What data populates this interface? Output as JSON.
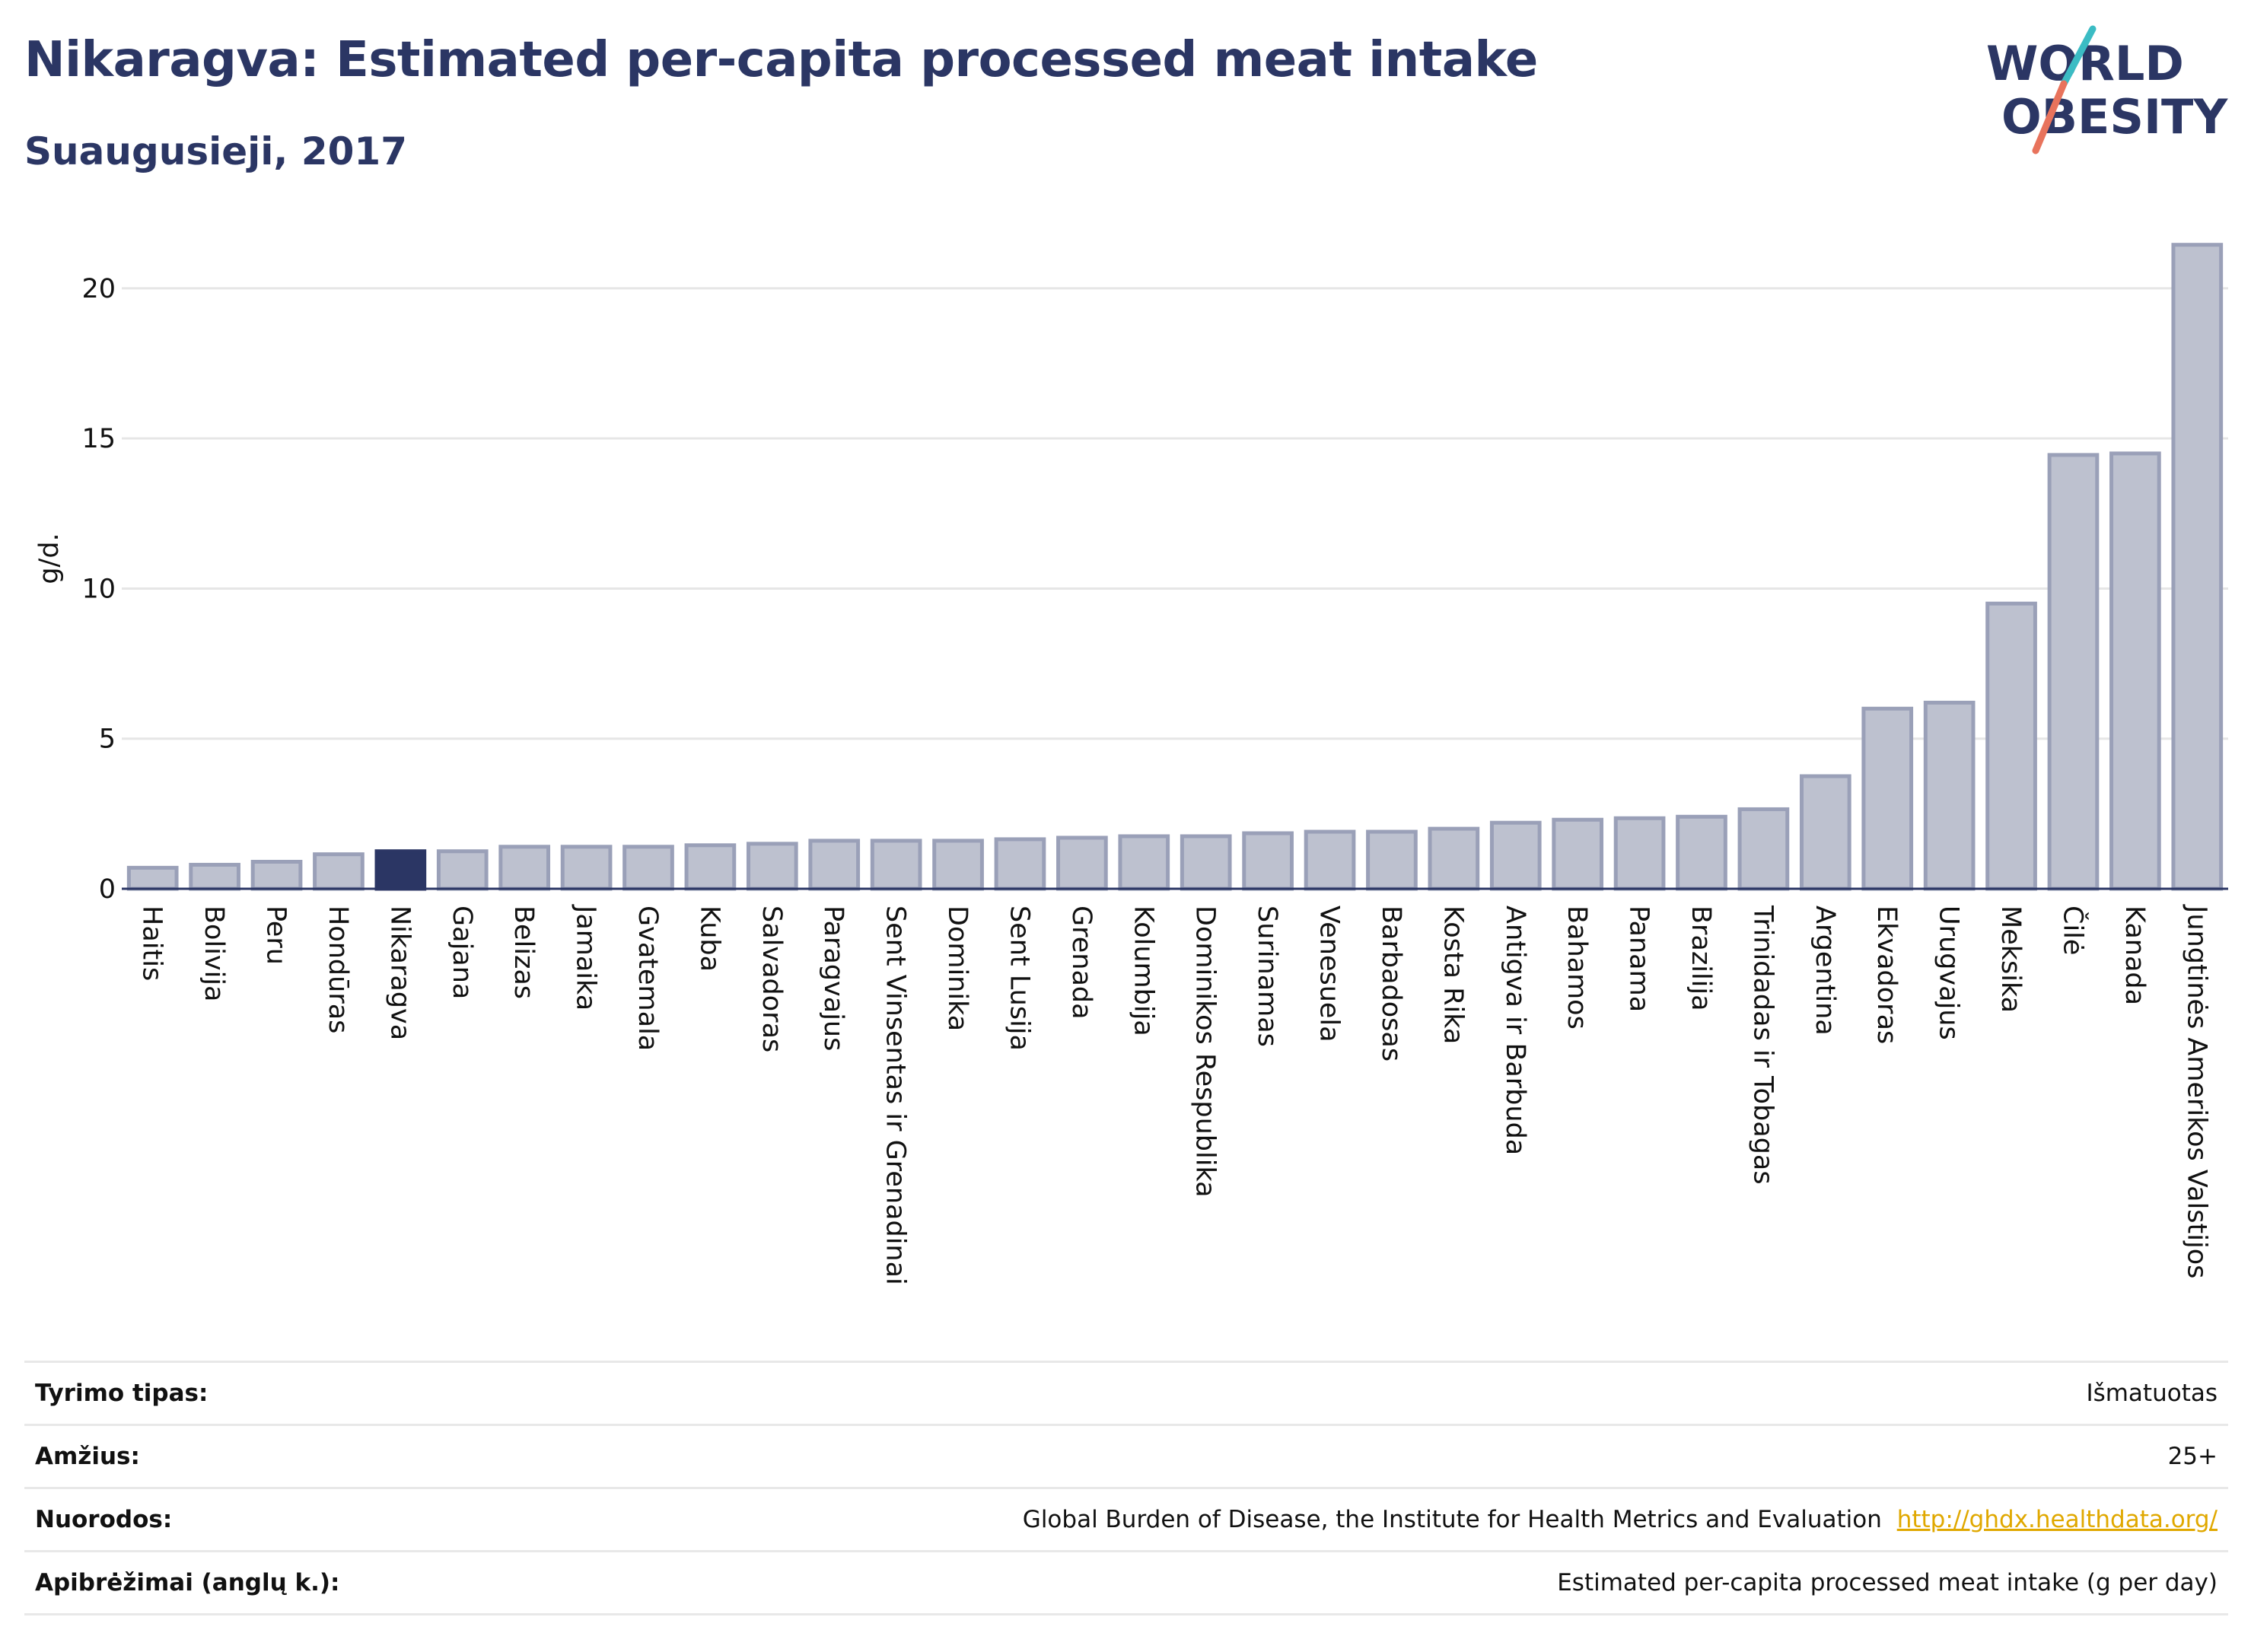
{
  "header": {
    "title": "Nikaragva: Estimated per-capita processed meat intake",
    "subtitle": "Suaugusieji, 2017"
  },
  "logo": {
    "line1": "WORLD",
    "line2": "OBESITY"
  },
  "colors": {
    "highlight": "#2b3664",
    "bar_fill": "#bdc1cf",
    "bar_stroke": "#9aa0b8",
    "title": "#2b3664",
    "link": "#e0a800"
  },
  "chart_data": {
    "type": "bar",
    "ylabel": "g/d.",
    "ylim": [
      0,
      22
    ],
    "yticks": [
      0,
      5,
      10,
      15,
      20
    ],
    "grid": true,
    "highlight": "Nikaragva",
    "categories": [
      "Haitis",
      "Bolivija",
      "Peru",
      "Hondūras",
      "Nikaragva",
      "Gajana",
      "Belizas",
      "Jamaika",
      "Gvatemala",
      "Kuba",
      "Salvadoras",
      "Paragvajus",
      "Sent Vinsentas ir Grenadinai",
      "Dominika",
      "Sent Lusija",
      "Grenada",
      "Kolumbija",
      "Dominikos Respublika",
      "Surinamas",
      "Venesuela",
      "Barbadosas",
      "Kosta Rika",
      "Antigva ir Barbuda",
      "Bahamos",
      "Panama",
      "Brazilija",
      "Trinidadas ir Tobagas",
      "Argentina",
      "Ekvadoras",
      "Urugvajus",
      "Meksika",
      "Čilė",
      "Kanada",
      "Jungtinės Amerikos Valstijos"
    ],
    "values": [
      0.7,
      0.8,
      0.9,
      1.15,
      1.25,
      1.25,
      1.4,
      1.4,
      1.4,
      1.45,
      1.5,
      1.6,
      1.6,
      1.6,
      1.65,
      1.7,
      1.75,
      1.75,
      1.85,
      1.9,
      1.9,
      2.0,
      2.2,
      2.3,
      2.35,
      2.4,
      2.65,
      3.75,
      6.0,
      6.2,
      9.5,
      14.45,
      14.5,
      21.45
    ]
  },
  "meta": [
    {
      "label": "Tyrimo tipas:",
      "value": "Išmatuotas",
      "link": ""
    },
    {
      "label": "Amžius:",
      "value": "25+",
      "link": ""
    },
    {
      "label": "Nuorodos:",
      "value": "Global Burden of Disease, the Institute for Health Metrics and Evaluation",
      "link": "http://ghdx.healthdata.org/"
    },
    {
      "label": "Apibrėžimai (anglų k.):",
      "value": "Estimated per-capita processed meat intake (g per day)",
      "link": ""
    }
  ]
}
